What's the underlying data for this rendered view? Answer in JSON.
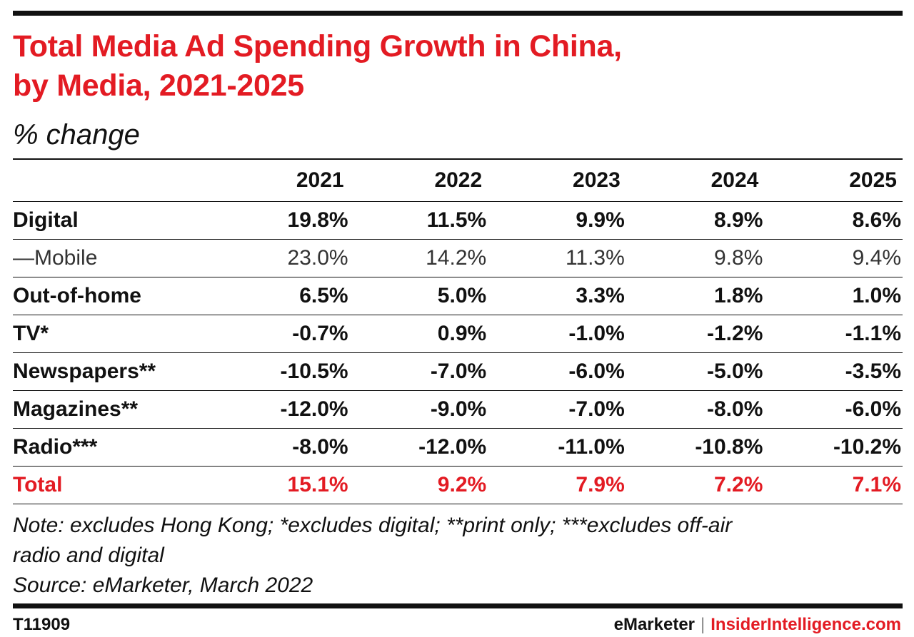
{
  "header": {
    "title_line1": "Total Media Ad Spending Growth in China,",
    "title_line2": "by Media, 2021-2025",
    "subtitle": "% change"
  },
  "chart_data": {
    "type": "table",
    "title": "Total Media Ad Spending Growth in China, by Media, 2021-2025",
    "subtitle": "% change",
    "columns": [
      "2021",
      "2022",
      "2023",
      "2024",
      "2025"
    ],
    "rows": [
      {
        "label": "Digital",
        "style": "bold",
        "values": [
          "19.8%",
          "11.5%",
          "9.9%",
          "8.9%",
          "8.6%"
        ]
      },
      {
        "label": "—Mobile",
        "style": "light",
        "values": [
          "23.0%",
          "14.2%",
          "11.3%",
          "9.8%",
          "9.4%"
        ]
      },
      {
        "label": "Out-of-home",
        "style": "bold",
        "values": [
          "6.5%",
          "5.0%",
          "3.3%",
          "1.8%",
          "1.0%"
        ]
      },
      {
        "label": "TV*",
        "style": "bold",
        "values": [
          "-0.7%",
          "0.9%",
          "-1.0%",
          "-1.2%",
          "-1.1%"
        ]
      },
      {
        "label": "Newspapers**",
        "style": "bold",
        "values": [
          "-10.5%",
          "-7.0%",
          "-6.0%",
          "-5.0%",
          "-3.5%"
        ]
      },
      {
        "label": "Magazines**",
        "style": "bold",
        "values": [
          "-12.0%",
          "-9.0%",
          "-7.0%",
          "-8.0%",
          "-6.0%"
        ]
      },
      {
        "label": "Radio***",
        "style": "bold",
        "values": [
          "-8.0%",
          "-12.0%",
          "-11.0%",
          "-10.8%",
          "-10.2%"
        ]
      },
      {
        "label": "Total",
        "style": "total",
        "values": [
          "15.1%",
          "9.2%",
          "7.9%",
          "7.2%",
          "7.1%"
        ]
      }
    ]
  },
  "notes": {
    "line1": "Note: excludes Hong Kong; *excludes digital; **print only; ***excludes off-air",
    "line2": "radio and digital",
    "source": "Source: eMarketer, March 2022"
  },
  "footer": {
    "chart_id": "T11909",
    "brand_emarketer": "eMarketer",
    "separator": "|",
    "brand_insider": "InsiderIntelligence.com"
  },
  "colors": {
    "accent": "#e31b23",
    "text": "#111111"
  }
}
